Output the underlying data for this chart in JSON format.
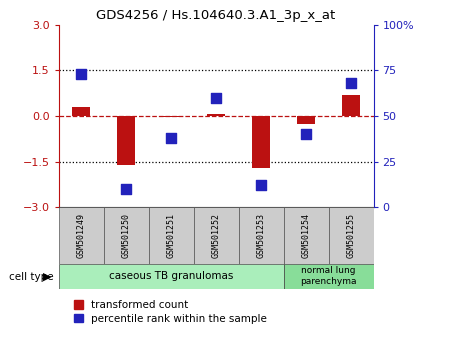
{
  "title": "GDS4256 / Hs.104640.3.A1_3p_x_at",
  "samples": [
    "GSM501249",
    "GSM501250",
    "GSM501251",
    "GSM501252",
    "GSM501253",
    "GSM501254",
    "GSM501255"
  ],
  "transformed_count": [
    0.3,
    -1.62,
    -0.05,
    0.07,
    -1.72,
    -0.28,
    0.68
  ],
  "percentile_rank": [
    73,
    10,
    38,
    60,
    12,
    40,
    68
  ],
  "ylim_left": [
    -3,
    3
  ],
  "ylim_right": [
    0,
    100
  ],
  "yticks_left": [
    -3,
    -1.5,
    0,
    1.5,
    3
  ],
  "yticks_right": [
    0,
    25,
    50,
    75,
    100
  ],
  "ytick_labels_right": [
    "0",
    "25",
    "50",
    "75",
    "100%"
  ],
  "red_color": "#bb1111",
  "blue_color": "#2222bb",
  "dotted_line_y": [
    1.5,
    -1.5
  ],
  "dashed_line_y": 0,
  "group1_label": "caseous TB granulomas",
  "group2_label": "normal lung\nparenchyma",
  "group1_color": "#aaeebb",
  "group2_color": "#88dd99",
  "cell_type_label": "cell type",
  "legend1_label": "transformed count",
  "legend2_label": "percentile rank within the sample",
  "bar_width": 0.4,
  "blue_marker_size": 55
}
